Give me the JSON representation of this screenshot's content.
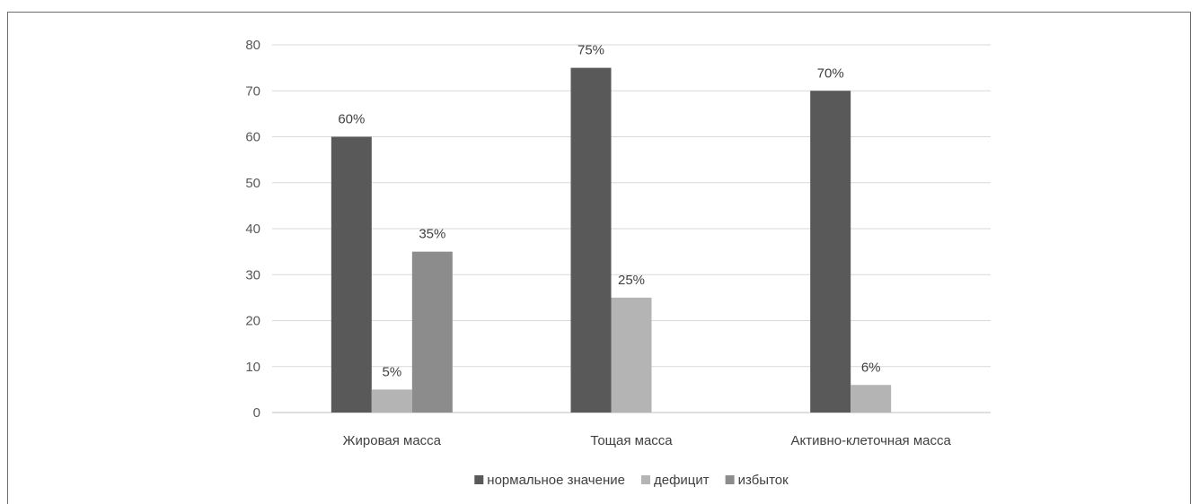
{
  "chart_data": {
    "type": "bar",
    "categories": [
      "Жировая масса",
      "Тощая масса",
      "Активно-клеточная масса"
    ],
    "series": [
      {
        "name": "нормальное значение",
        "color": "#595959",
        "values": [
          60,
          75,
          70
        ],
        "labels": [
          "60%",
          "75%",
          "70%"
        ]
      },
      {
        "name": "дефицит",
        "color": "#b4b4b4",
        "values": [
          5,
          25,
          6
        ],
        "labels": [
          "5%",
          "25%",
          "6%"
        ]
      },
      {
        "name": "избыток",
        "color": "#8c8c8c",
        "values": [
          35,
          null,
          null
        ],
        "labels": [
          "35%",
          null,
          null
        ]
      }
    ],
    "ylim": [
      0,
      80
    ],
    "yticks": [
      0,
      10,
      20,
      30,
      40,
      50,
      60,
      70,
      80
    ],
    "grid": true,
    "legend": "bottom"
  }
}
